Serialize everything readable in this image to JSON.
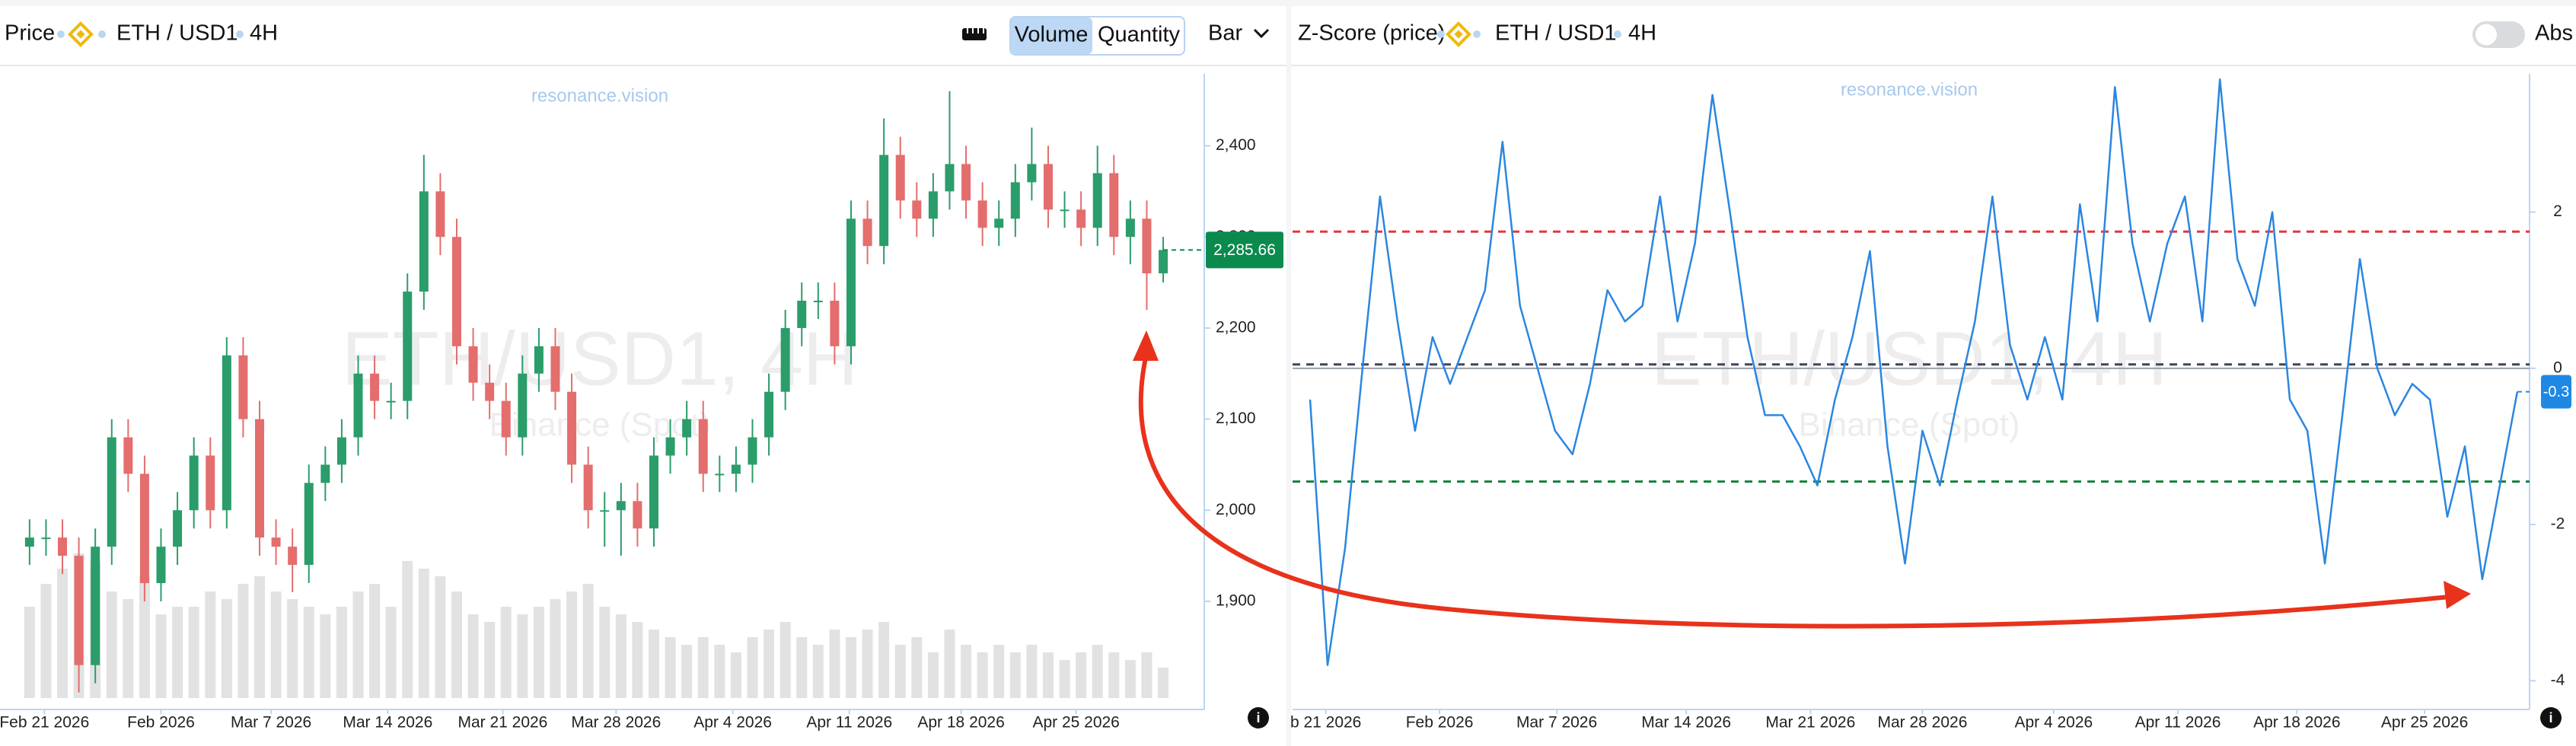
{
  "header_left": {
    "label": "Price",
    "symbol": "ETH / USD1",
    "interval": "4H",
    "buttons": [
      "Volume",
      "Quantity"
    ],
    "chart_style": "Bar"
  },
  "header_right": {
    "label": "Z-Score (price)",
    "symbol": "ETH / USD1",
    "interval": "4H",
    "toggle": "Abs"
  },
  "chart_data": [
    {
      "type": "candlestick",
      "watermark": {
        "title": "ETH/USD1, 4H",
        "subtitle": "Binance (Spot)",
        "brand": "resonance.vision"
      },
      "x": [
        0,
        1,
        2,
        3,
        4,
        5,
        6,
        7,
        8,
        9,
        10,
        11,
        12,
        13,
        14,
        15,
        16,
        17,
        18,
        19,
        20,
        21,
        22,
        23,
        24,
        25,
        26,
        27,
        28,
        29,
        30,
        31,
        32,
        33,
        34,
        35,
        36,
        37,
        38,
        39,
        40,
        41,
        42,
        43,
        44,
        45,
        46,
        47,
        48,
        49,
        50,
        51,
        52,
        53,
        54,
        55,
        56,
        57,
        58,
        59,
        60,
        61,
        62,
        63,
        64,
        65,
        66,
        67,
        68,
        69
      ],
      "open": [
        1960,
        1970,
        1970,
        1950,
        1830,
        1960,
        2080,
        2040,
        1920,
        1960,
        2000,
        2060,
        2000,
        2170,
        2100,
        1970,
        1960,
        1940,
        2030,
        2050,
        2080,
        2150,
        2120,
        2120,
        2240,
        2350,
        2300,
        2180,
        2140,
        2120,
        2080,
        2150,
        2180,
        2130,
        2050,
        2000,
        2000,
        2010,
        1980,
        2060,
        2080,
        2100,
        2040,
        2040,
        2050,
        2080,
        2130,
        2200,
        2230,
        2230,
        2180,
        2320,
        2290,
        2390,
        2340,
        2320,
        2350,
        2380,
        2340,
        2310,
        2320,
        2360,
        2380,
        2330,
        2330,
        2310,
        2370,
        2300,
        2320,
        2260
      ],
      "high": [
        1990,
        1990,
        1990,
        1970,
        1980,
        2100,
        2100,
        2060,
        1980,
        2020,
        2080,
        2080,
        2190,
        2190,
        2120,
        1990,
        1980,
        2050,
        2070,
        2100,
        2170,
        2170,
        2140,
        2260,
        2390,
        2370,
        2320,
        2200,
        2160,
        2140,
        2170,
        2200,
        2200,
        2150,
        2070,
        2020,
        2030,
        2030,
        2080,
        2100,
        2120,
        2120,
        2060,
        2070,
        2100,
        2150,
        2220,
        2250,
        2250,
        2250,
        2340,
        2340,
        2430,
        2410,
        2360,
        2370,
        2460,
        2400,
        2360,
        2340,
        2380,
        2420,
        2400,
        2350,
        2350,
        2400,
        2390,
        2340,
        2340,
        2300
      ],
      "low": [
        1940,
        1950,
        1930,
        1800,
        1810,
        1940,
        2020,
        1900,
        1900,
        1940,
        1980,
        1980,
        1980,
        2080,
        1950,
        1940,
        1910,
        1920,
        2010,
        2030,
        2060,
        2100,
        2100,
        2100,
        2220,
        2280,
        2160,
        2120,
        2100,
        2060,
        2060,
        2130,
        2110,
        2030,
        1980,
        1960,
        1950,
        1960,
        1960,
        2040,
        2060,
        2020,
        2020,
        2020,
        2030,
        2060,
        2110,
        2180,
        2210,
        2160,
        2160,
        2270,
        2270,
        2320,
        2300,
        2300,
        2330,
        2320,
        2290,
        2290,
        2300,
        2340,
        2310,
        2310,
        2290,
        2290,
        2280,
        2270,
        2220,
        2250
      ],
      "close": [
        1970,
        1970,
        1950,
        1830,
        1960,
        2080,
        2040,
        1920,
        1960,
        2000,
        2060,
        2000,
        2170,
        2100,
        1970,
        1960,
        1940,
        2030,
        2050,
        2080,
        2150,
        2120,
        2120,
        2240,
        2350,
        2300,
        2180,
        2140,
        2120,
        2080,
        2150,
        2180,
        2130,
        2050,
        2000,
        2000,
        2010,
        1980,
        2060,
        2080,
        2100,
        2040,
        2040,
        2050,
        2080,
        2130,
        2200,
        2230,
        2230,
        2180,
        2320,
        2290,
        2390,
        2340,
        2320,
        2350,
        2380,
        2340,
        2310,
        2320,
        2360,
        2380,
        2330,
        2330,
        2310,
        2370,
        2300,
        2320,
        2260,
        2285.66
      ],
      "volume": [
        60,
        75,
        85,
        95,
        90,
        70,
        65,
        80,
        55,
        60,
        60,
        70,
        65,
        75,
        80,
        70,
        65,
        60,
        55,
        60,
        70,
        75,
        60,
        90,
        85,
        80,
        70,
        55,
        50,
        60,
        55,
        60,
        65,
        70,
        75,
        60,
        55,
        50,
        45,
        40,
        35,
        40,
        35,
        30,
        40,
        45,
        50,
        40,
        35,
        45,
        40,
        45,
        50,
        35,
        40,
        30,
        45,
        35,
        30,
        35,
        30,
        35,
        30,
        25,
        30,
        35,
        30,
        25,
        30,
        20
      ],
      "up_color": "#2a9d6a",
      "down_color": "#e46d6d",
      "volume_color": "#e2e2e2",
      "xlim": [
        -1.8,
        71.5
      ],
      "ylim": [
        1788,
        2479
      ],
      "xticks": [
        {
          "value": 0.9,
          "label": "Feb 21 2026"
        },
        {
          "value": 8,
          "label": "Feb 2026"
        },
        {
          "value": 14.7,
          "label": "Mar 7 2026"
        },
        {
          "value": 21.8,
          "label": "Mar 14 2026"
        },
        {
          "value": 28.8,
          "label": "Mar 21 2026"
        },
        {
          "value": 35.7,
          "label": "Mar 28 2026"
        },
        {
          "value": 42.8,
          "label": "Apr 4 2026"
        },
        {
          "value": 49.9,
          "label": "Apr 11 2026"
        },
        {
          "value": 56.7,
          "label": "Apr 18 2026"
        },
        {
          "value": 63.7,
          "label": "Apr 25 2026"
        }
      ],
      "yticks": [
        {
          "value": 1900,
          "label": "1,900"
        },
        {
          "value": 2000,
          "label": "2,000"
        },
        {
          "value": 2100,
          "label": "2,100"
        },
        {
          "value": 2200,
          "label": "2,200"
        },
        {
          "value": 2300,
          "label": "2,300"
        },
        {
          "value": 2400,
          "label": "2,400"
        }
      ],
      "last_price": {
        "value": 2285.66,
        "label": "2,285.66"
      },
      "last_price_color": "#0b8a4e"
    },
    {
      "type": "line",
      "watermark": {
        "title": "ETH/USD1, 4H",
        "subtitle": "Binance (Spot)",
        "brand": "resonance.vision"
      },
      "x": [
        0,
        1,
        2,
        3,
        4,
        5,
        6,
        7,
        8,
        9,
        10,
        11,
        12,
        13,
        14,
        15,
        16,
        17,
        18,
        19,
        20,
        21,
        22,
        23,
        24,
        25,
        26,
        27,
        28,
        29,
        30,
        31,
        32,
        33,
        34,
        35,
        36,
        37,
        38,
        39,
        40,
        41,
        42,
        43,
        44,
        45,
        46,
        47,
        48,
        49,
        50,
        51,
        52,
        53,
        54,
        55,
        56,
        57,
        58,
        59,
        60,
        61,
        62,
        63,
        64,
        65,
        66,
        67,
        68,
        69
      ],
      "values": [
        -0.4,
        -3.8,
        -2.3,
        0,
        2.2,
        0.6,
        -0.8,
        0.4,
        -0.2,
        0.4,
        1.0,
        2.9,
        0.8,
        0,
        -0.8,
        -1.1,
        -0.2,
        1.0,
        0.6,
        0.8,
        2.2,
        0.6,
        1.6,
        3.5,
        2.0,
        0.4,
        -0.6,
        -0.6,
        -1.0,
        -1.5,
        -0.4,
        0.4,
        1.5,
        -1.0,
        -2.5,
        -0.8,
        -1.5,
        -0.4,
        0.6,
        2.2,
        0.3,
        -0.4,
        0.4,
        -0.4,
        2.1,
        0.6,
        3.6,
        1.6,
        0.6,
        1.6,
        2.2,
        0.6,
        3.7,
        1.4,
        0.8,
        2.0,
        -0.4,
        -0.8,
        -2.5,
        -0.6,
        1.4,
        0,
        -0.6,
        -0.2,
        -0.4,
        -1.9,
        -1.0,
        -2.7,
        -1.5,
        -0.3
      ],
      "color": "#2b86e0",
      "levels": [
        {
          "value": 1.75,
          "color": "#e0393e"
        },
        {
          "value": 0.05,
          "color": "#3a4660"
        },
        {
          "value": -1.45,
          "color": "#15803d"
        }
      ],
      "xlim": [
        -1,
        69.7
      ],
      "ylim": [
        -4.29,
        3.77
      ],
      "xticks": [
        {
          "value": 0.9,
          "label": "b 21 2026"
        },
        {
          "value": 7.4,
          "label": "Feb 2026"
        },
        {
          "value": 14.1,
          "label": "Mar 7 2026"
        },
        {
          "value": 21.5,
          "label": "Mar 14 2026"
        },
        {
          "value": 28.6,
          "label": "Mar 21 2026"
        },
        {
          "value": 35.0,
          "label": "Mar 28 2026"
        },
        {
          "value": 42.5,
          "label": "Apr 4 2026"
        },
        {
          "value": 49.6,
          "label": "Apr 11 2026"
        },
        {
          "value": 56.4,
          "label": "Apr 18 2026"
        },
        {
          "value": 63.7,
          "label": "Apr 25 2026"
        }
      ],
      "yticks": [
        -4,
        -2,
        0,
        2
      ],
      "last_value": -0.3
    }
  ]
}
